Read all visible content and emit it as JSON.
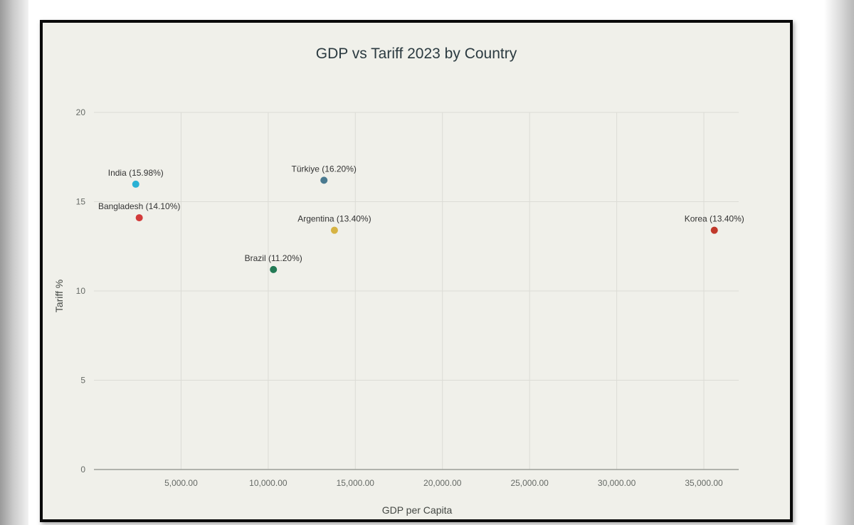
{
  "chart_data": {
    "type": "scatter",
    "title": "GDP vs Tariff 2023 by Country",
    "xlabel": "GDP per Capita",
    "ylabel": "Tariff %",
    "xlim": [
      0,
      37000
    ],
    "ylim": [
      0,
      20
    ],
    "x_ticks": [
      5000,
      10000,
      15000,
      20000,
      25000,
      30000,
      35000
    ],
    "x_tick_labels": [
      "5,000.00",
      "10,000.00",
      "15,000.00",
      "20,000.00",
      "25,000.00",
      "30,000.00",
      "35,000.00"
    ],
    "y_ticks": [
      0,
      5,
      10,
      15,
      20
    ],
    "y_tick_labels": [
      "0",
      "5",
      "10",
      "15",
      "20"
    ],
    "grid": true,
    "points": [
      {
        "name": "India",
        "label": "India (15.98%)",
        "x": 2400,
        "y": 15.98,
        "color": "#2ab1d4"
      },
      {
        "name": "Bangladesh",
        "label": "Bangladesh (14.10%)",
        "x": 2600,
        "y": 14.1,
        "color": "#d23a3a"
      },
      {
        "name": "Türkiye",
        "label": "Türkiye (16.20%)",
        "x": 13200,
        "y": 16.2,
        "color": "#4a7a90"
      },
      {
        "name": "Argentina",
        "label": "Argentina (13.40%)",
        "x": 13800,
        "y": 13.4,
        "color": "#d6b343"
      },
      {
        "name": "Brazil",
        "label": "Brazil (11.20%)",
        "x": 10300,
        "y": 11.2,
        "color": "#237a55"
      },
      {
        "name": "Korea",
        "label": "Korea (13.40%)",
        "x": 35600,
        "y": 13.4,
        "color": "#c0392b"
      }
    ]
  }
}
